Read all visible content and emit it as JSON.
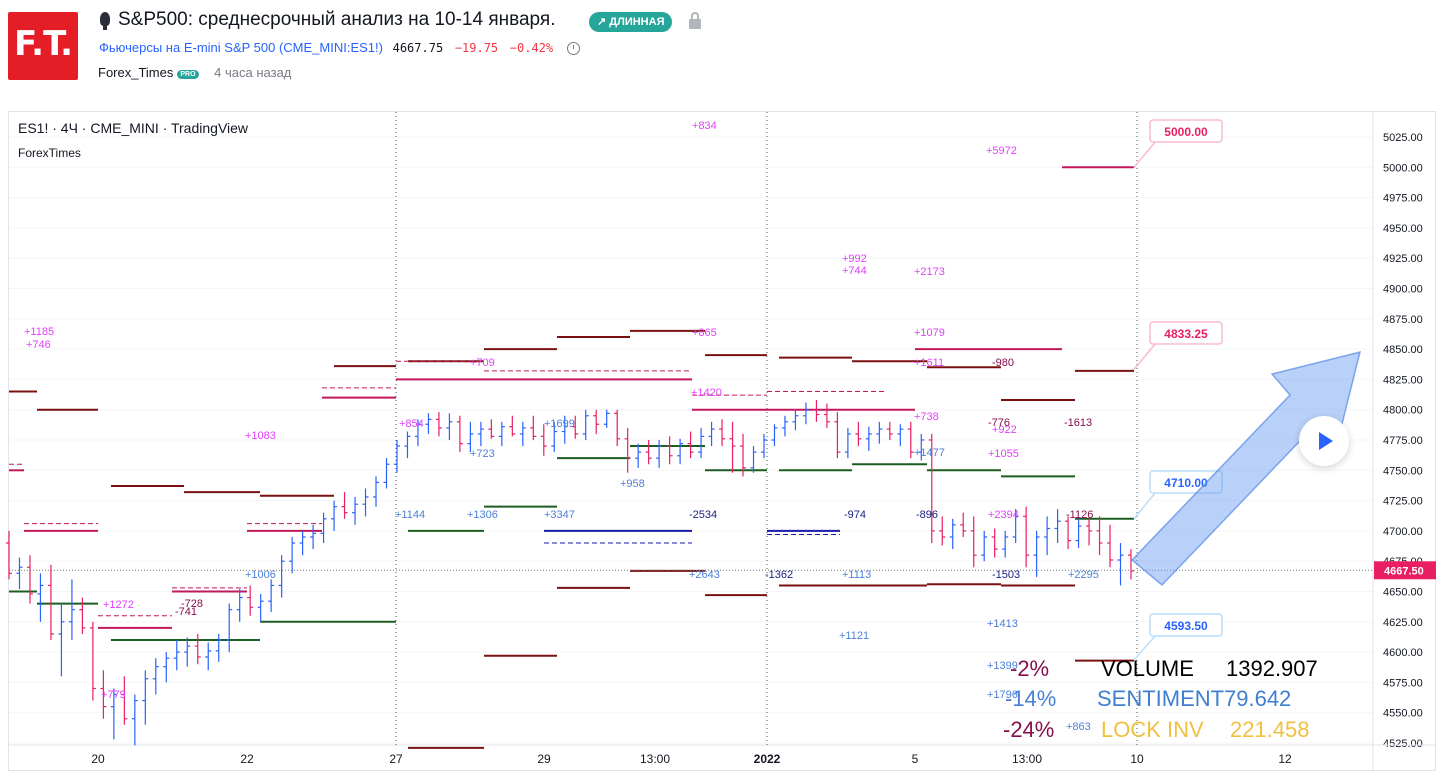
{
  "header": {
    "logo_text": "F.T.",
    "title": "S&P500: среднесрочный анализ на 10-14 января.",
    "badge": "↗ ДЛИННАЯ",
    "symbol_name": "Фьючерсы на E-mini S&P 500 (CME_MINI:ES1!)",
    "price": "4667.75",
    "change": "−19.75",
    "change_pct": "−0.42%",
    "author": "Forex_Times",
    "author_badge": "PRO",
    "published": "4 часа назад"
  },
  "chart": {
    "legend_line1": "ES1! · 4Ч · CME_MINI · TradingView",
    "legend_line2": "ForexTimes",
    "price_label": "4667.50",
    "colors": {
      "up": "#2962ff",
      "down": "#e91e63",
      "axis_text": "#131722",
      "grid": "#f0f3fa",
      "price_tag": "#e91e63"
    }
  },
  "chart_data": {
    "type": "bar",
    "x_ticks": [
      "20",
      "22",
      "27",
      "29",
      "13:00",
      "2022",
      "5",
      "13:00",
      "10",
      "12"
    ],
    "y_ticks": [
      "5025.00",
      "5000.00",
      "4975.00",
      "4950.00",
      "4925.00",
      "4900.00",
      "4875.00",
      "4850.00",
      "4825.00",
      "4800.00",
      "4775.00",
      "4750.00",
      "4725.00",
      "4700.00",
      "4675.00",
      "4650.00",
      "4625.00",
      "4600.00",
      "4575.00",
      "4550.00",
      "4525.00"
    ],
    "ylim": [
      4516,
      5034
    ],
    "current_price": 4667.5,
    "targets": [
      {
        "label": "5000.00",
        "value": 5000.0
      },
      {
        "label": "4833.25",
        "value": 4833.25
      },
      {
        "label": "4710.00",
        "value": 4710.0
      },
      {
        "label": "4593.50",
        "value": 4593.5
      }
    ],
    "ohlc": [
      {
        "o": 4690,
        "h": 4700,
        "l": 4660,
        "c": 4665
      },
      {
        "o": 4665,
        "h": 4678,
        "l": 4652,
        "c": 4670
      },
      {
        "o": 4670,
        "h": 4680,
        "l": 4640,
        "c": 4648
      },
      {
        "o": 4648,
        "h": 4665,
        "l": 4625,
        "c": 4655
      },
      {
        "o": 4655,
        "h": 4672,
        "l": 4610,
        "c": 4615
      },
      {
        "o": 4615,
        "h": 4640,
        "l": 4580,
        "c": 4625
      },
      {
        "o": 4625,
        "h": 4660,
        "l": 4610,
        "c": 4635
      },
      {
        "o": 4635,
        "h": 4645,
        "l": 4615,
        "c": 4620
      },
      {
        "o": 4620,
        "h": 4625,
        "l": 4560,
        "c": 4570
      },
      {
        "o": 4570,
        "h": 4585,
        "l": 4545,
        "c": 4555
      },
      {
        "o": 4555,
        "h": 4570,
        "l": 4528,
        "c": 4565
      },
      {
        "o": 4565,
        "h": 4580,
        "l": 4540,
        "c": 4545
      },
      {
        "o": 4545,
        "h": 4565,
        "l": 4523,
        "c": 4560
      },
      {
        "o": 4560,
        "h": 4585,
        "l": 4540,
        "c": 4578
      },
      {
        "o": 4578,
        "h": 4595,
        "l": 4565,
        "c": 4588
      },
      {
        "o": 4588,
        "h": 4600,
        "l": 4575,
        "c": 4595
      },
      {
        "o": 4595,
        "h": 4610,
        "l": 4585,
        "c": 4600
      },
      {
        "o": 4600,
        "h": 4612,
        "l": 4588,
        "c": 4605
      },
      {
        "o": 4605,
        "h": 4615,
        "l": 4590,
        "c": 4596
      },
      {
        "o": 4596,
        "h": 4608,
        "l": 4585,
        "c": 4601
      },
      {
        "o": 4601,
        "h": 4615,
        "l": 4592,
        "c": 4610
      },
      {
        "o": 4610,
        "h": 4640,
        "l": 4600,
        "c": 4635
      },
      {
        "o": 4635,
        "h": 4652,
        "l": 4625,
        "c": 4645
      },
      {
        "o": 4645,
        "h": 4655,
        "l": 4630,
        "c": 4637
      },
      {
        "o": 4637,
        "h": 4648,
        "l": 4625,
        "c": 4642
      },
      {
        "o": 4642,
        "h": 4660,
        "l": 4633,
        "c": 4655
      },
      {
        "o": 4655,
        "h": 4680,
        "l": 4645,
        "c": 4675
      },
      {
        "o": 4675,
        "h": 4695,
        "l": 4665,
        "c": 4690
      },
      {
        "o": 4690,
        "h": 4700,
        "l": 4680,
        "c": 4695
      },
      {
        "o": 4695,
        "h": 4705,
        "l": 4685,
        "c": 4698
      },
      {
        "o": 4698,
        "h": 4715,
        "l": 4690,
        "c": 4710
      },
      {
        "o": 4710,
        "h": 4725,
        "l": 4700,
        "c": 4720
      },
      {
        "o": 4720,
        "h": 4732,
        "l": 4710,
        "c": 4715
      },
      {
        "o": 4715,
        "h": 4728,
        "l": 4705,
        "c": 4722
      },
      {
        "o": 4722,
        "h": 4735,
        "l": 4712,
        "c": 4728
      },
      {
        "o": 4728,
        "h": 4745,
        "l": 4720,
        "c": 4740
      },
      {
        "o": 4740,
        "h": 4760,
        "l": 4735,
        "c": 4755
      },
      {
        "o": 4755,
        "h": 4775,
        "l": 4748,
        "c": 4770
      },
      {
        "o": 4770,
        "h": 4782,
        "l": 4760,
        "c": 4778
      },
      {
        "o": 4778,
        "h": 4792,
        "l": 4770,
        "c": 4788
      },
      {
        "o": 4788,
        "h": 4797,
        "l": 4780,
        "c": 4792
      },
      {
        "o": 4792,
        "h": 4798,
        "l": 4778,
        "c": 4785
      },
      {
        "o": 4785,
        "h": 4797,
        "l": 4775,
        "c": 4790
      },
      {
        "o": 4790,
        "h": 4795,
        "l": 4765,
        "c": 4772
      },
      {
        "o": 4772,
        "h": 4790,
        "l": 4765,
        "c": 4780
      },
      {
        "o": 4780,
        "h": 4790,
        "l": 4770,
        "c": 4784
      },
      {
        "o": 4784,
        "h": 4792,
        "l": 4776,
        "c": 4778
      },
      {
        "o": 4778,
        "h": 4790,
        "l": 4770,
        "c": 4786
      },
      {
        "o": 4786,
        "h": 4795,
        "l": 4778,
        "c": 4780
      },
      {
        "o": 4780,
        "h": 4790,
        "l": 4770,
        "c": 4785
      },
      {
        "o": 4785,
        "h": 4795,
        "l": 4775,
        "c": 4778
      },
      {
        "o": 4778,
        "h": 4788,
        "l": 4762,
        "c": 4770
      },
      {
        "o": 4770,
        "h": 4790,
        "l": 4765,
        "c": 4782
      },
      {
        "o": 4782,
        "h": 4795,
        "l": 4772,
        "c": 4786
      },
      {
        "o": 4786,
        "h": 4795,
        "l": 4776,
        "c": 4780
      },
      {
        "o": 4780,
        "h": 4800,
        "l": 4775,
        "c": 4795
      },
      {
        "o": 4795,
        "h": 4800,
        "l": 4780,
        "c": 4788
      },
      {
        "o": 4788,
        "h": 4800,
        "l": 4785,
        "c": 4797
      },
      {
        "o": 4797,
        "h": 4800,
        "l": 4770,
        "c": 4776
      },
      {
        "o": 4776,
        "h": 4785,
        "l": 4748,
        "c": 4760
      },
      {
        "o": 4760,
        "h": 4772,
        "l": 4752,
        "c": 4765
      },
      {
        "o": 4765,
        "h": 4775,
        "l": 4755,
        "c": 4760
      },
      {
        "o": 4760,
        "h": 4775,
        "l": 4752,
        "c": 4770
      },
      {
        "o": 4770,
        "h": 4778,
        "l": 4755,
        "c": 4762
      },
      {
        "o": 4762,
        "h": 4776,
        "l": 4755,
        "c": 4772
      },
      {
        "o": 4772,
        "h": 4782,
        "l": 4760,
        "c": 4765
      },
      {
        "o": 4765,
        "h": 4785,
        "l": 4760,
        "c": 4778
      },
      {
        "o": 4778,
        "h": 4790,
        "l": 4770,
        "c": 4784
      },
      {
        "o": 4784,
        "h": 4792,
        "l": 4770,
        "c": 4776
      },
      {
        "o": 4776,
        "h": 4790,
        "l": 4748,
        "c": 4770
      },
      {
        "o": 4770,
        "h": 4780,
        "l": 4745,
        "c": 4752
      },
      {
        "o": 4752,
        "h": 4770,
        "l": 4748,
        "c": 4765
      },
      {
        "o": 4765,
        "h": 4780,
        "l": 4760,
        "c": 4775
      },
      {
        "o": 4775,
        "h": 4788,
        "l": 4770,
        "c": 4785
      },
      {
        "o": 4785,
        "h": 4795,
        "l": 4778,
        "c": 4790
      },
      {
        "o": 4790,
        "h": 4800,
        "l": 4783,
        "c": 4795
      },
      {
        "o": 4795,
        "h": 4806,
        "l": 4788,
        "c": 4800
      },
      {
        "o": 4800,
        "h": 4808,
        "l": 4790,
        "c": 4796
      },
      {
        "o": 4796,
        "h": 4805,
        "l": 4785,
        "c": 4790
      },
      {
        "o": 4790,
        "h": 4798,
        "l": 4760,
        "c": 4765
      },
      {
        "o": 4765,
        "h": 4785,
        "l": 4760,
        "c": 4780
      },
      {
        "o": 4780,
        "h": 4790,
        "l": 4770,
        "c": 4776
      },
      {
        "o": 4776,
        "h": 4786,
        "l": 4766,
        "c": 4780
      },
      {
        "o": 4780,
        "h": 4790,
        "l": 4772,
        "c": 4784
      },
      {
        "o": 4784,
        "h": 4790,
        "l": 4775,
        "c": 4780
      },
      {
        "o": 4780,
        "h": 4788,
        "l": 4770,
        "c": 4784
      },
      {
        "o": 4784,
        "h": 4790,
        "l": 4760,
        "c": 4765
      },
      {
        "o": 4765,
        "h": 4780,
        "l": 4758,
        "c": 4775
      },
      {
        "o": 4775,
        "h": 4780,
        "l": 4690,
        "c": 4700
      },
      {
        "o": 4700,
        "h": 4712,
        "l": 4688,
        "c": 4695
      },
      {
        "o": 4695,
        "h": 4710,
        "l": 4685,
        "c": 4705
      },
      {
        "o": 4705,
        "h": 4715,
        "l": 4695,
        "c": 4700
      },
      {
        "o": 4700,
        "h": 4712,
        "l": 4670,
        "c": 4680
      },
      {
        "o": 4680,
        "h": 4700,
        "l": 4675,
        "c": 4695
      },
      {
        "o": 4695,
        "h": 4702,
        "l": 4678,
        "c": 4685
      },
      {
        "o": 4685,
        "h": 4700,
        "l": 4678,
        "c": 4695
      },
      {
        "o": 4695,
        "h": 4718,
        "l": 4690,
        "c": 4712
      },
      {
        "o": 4712,
        "h": 4720,
        "l": 4670,
        "c": 4680
      },
      {
        "o": 4680,
        "h": 4700,
        "l": 4662,
        "c": 4695
      },
      {
        "o": 4695,
        "h": 4712,
        "l": 4680,
        "c": 4702
      },
      {
        "o": 4702,
        "h": 4718,
        "l": 4690,
        "c": 4708
      },
      {
        "o": 4708,
        "h": 4712,
        "l": 4685,
        "c": 4692
      },
      {
        "o": 4692,
        "h": 4710,
        "l": 4686,
        "c": 4704
      },
      {
        "o": 4704,
        "h": 4710,
        "l": 4688,
        "c": 4700
      },
      {
        "o": 4700,
        "h": 4712,
        "l": 4680,
        "c": 4690
      },
      {
        "o": 4690,
        "h": 4705,
        "l": 4670,
        "c": 4676
      },
      {
        "o": 4676,
        "h": 4690,
        "l": 4655,
        "c": 4680
      },
      {
        "o": 4680,
        "h": 4685,
        "l": 4660,
        "c": 4667
      }
    ]
  },
  "annotations": {
    "labels": [
      {
        "text": "+1185",
        "color": "#e040fb"
      },
      {
        "text": "+746",
        "color": "#e040fb"
      },
      {
        "text": "+1083",
        "color": "#e040fb"
      },
      {
        "text": "+834",
        "color": "#e040fb"
      },
      {
        "text": "+865",
        "color": "#e040fb"
      },
      {
        "text": "+709",
        "color": "#e040fb"
      },
      {
        "text": "+854",
        "color": "#e040fb"
      },
      {
        "text": "+1420",
        "color": "#e040fb"
      },
      {
        "text": "+5972",
        "color": "#e040fb"
      },
      {
        "text": "+992",
        "color": "#e040fb"
      },
      {
        "text": "+744",
        "color": "#e040fb"
      },
      {
        "text": "+2173",
        "color": "#e040fb"
      },
      {
        "text": "+1079",
        "color": "#e040fb"
      },
      {
        "text": "+1611",
        "color": "#e040fb"
      },
      {
        "text": "+738",
        "color": "#e040fb"
      },
      {
        "text": "+1055",
        "color": "#e040fb"
      },
      {
        "text": "+2394",
        "color": "#e040fb"
      },
      {
        "text": "+922",
        "color": "#e040fb"
      },
      {
        "text": "+1272",
        "color": "#e040fb"
      },
      {
        "text": "+779",
        "color": "#e040fb"
      },
      {
        "text": "+723",
        "color": "#4a7fd6"
      },
      {
        "text": "+1699",
        "color": "#4a7fd6"
      },
      {
        "text": "+958",
        "color": "#4a7fd6"
      },
      {
        "text": "+1144",
        "color": "#4a7fd6"
      },
      {
        "text": "+1306",
        "color": "#4a7fd6"
      },
      {
        "text": "+3347",
        "color": "#4a7fd6"
      },
      {
        "text": "+1006",
        "color": "#4a7fd6"
      },
      {
        "text": "+2643",
        "color": "#4a7fd6"
      },
      {
        "text": "+1113",
        "color": "#4a7fd6"
      },
      {
        "text": "+1121",
        "color": "#4a7fd6"
      },
      {
        "text": "+1477",
        "color": "#4a7fd6"
      },
      {
        "text": "+1413",
        "color": "#4a7fd6"
      },
      {
        "text": "+2295",
        "color": "#4a7fd6"
      },
      {
        "text": "+1399",
        "color": "#4a7fd6"
      },
      {
        "text": "+1796",
        "color": "#4a7fd6"
      },
      {
        "text": "+863",
        "color": "#4a7fd6"
      },
      {
        "text": "-728",
        "color": "#880e4f"
      },
      {
        "text": "-741",
        "color": "#880e4f"
      },
      {
        "text": "-980",
        "color": "#880e4f"
      },
      {
        "text": "-776",
        "color": "#880e4f"
      },
      {
        "text": "-1613",
        "color": "#880e4f"
      },
      {
        "text": "-1126",
        "color": "#880e4f"
      },
      {
        "text": "-2534",
        "color": "#1a237e"
      },
      {
        "text": "-974",
        "color": "#1a237e"
      },
      {
        "text": "-896",
        "color": "#1a237e"
      },
      {
        "text": "-1362",
        "color": "#1a237e"
      },
      {
        "text": "-1503",
        "color": "#1a237e"
      }
    ],
    "stats": {
      "pct1": "-2%",
      "pct2": "-14%",
      "pct3": "-24%",
      "volume_label": "VOLUME",
      "volume_value": "1392.907",
      "sentiment_label": "SENTIMENT",
      "sentiment_value": "79.642",
      "lockinv_label": "LOCK INV",
      "lockinv_value": "221.458"
    }
  }
}
